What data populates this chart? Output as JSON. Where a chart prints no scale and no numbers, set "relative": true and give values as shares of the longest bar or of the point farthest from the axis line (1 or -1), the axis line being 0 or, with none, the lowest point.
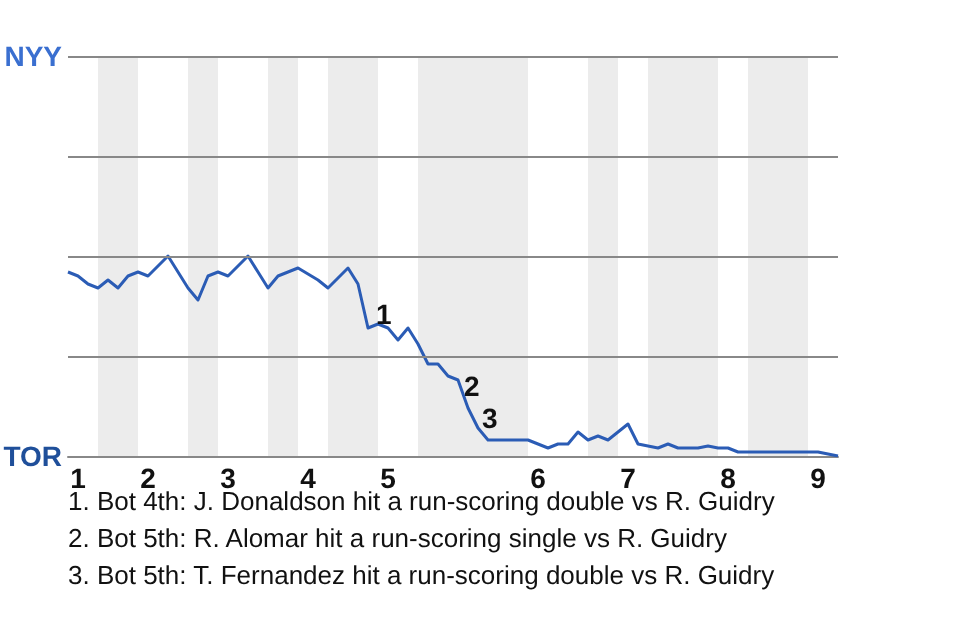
{
  "chart_data": {
    "type": "line",
    "relative": true,
    "categories": [
      null,
      "1",
      null,
      null,
      null,
      null,
      null,
      null,
      "2",
      null,
      null,
      null,
      null,
      null,
      null,
      null,
      "3",
      null,
      null,
      null,
      null,
      null,
      null,
      null,
      "4",
      null,
      null,
      null,
      null,
      null,
      null,
      null,
      "5",
      null,
      null,
      null,
      null,
      null,
      null,
      null,
      null,
      null,
      null,
      null,
      null,
      null,
      null,
      "6",
      null,
      null,
      null,
      null,
      null,
      null,
      null,
      null,
      "7",
      null,
      null,
      null,
      null,
      null,
      null,
      null,
      null,
      null,
      "8",
      null,
      null,
      null,
      null,
      null,
      null,
      null,
      null,
      "9",
      null,
      null
    ],
    "series": [
      {
        "color": "#2b5cb5",
        "values": [
          0.92,
          0.9,
          0.86,
          0.84,
          0.88,
          0.84,
          0.9,
          0.92,
          0.9,
          0.95,
          1,
          0.92,
          0.84,
          0.78,
          0.9,
          0.92,
          0.9,
          0.95,
          1,
          0.92,
          0.84,
          0.9,
          0.92,
          0.94,
          0.91,
          0.88,
          0.84,
          0.89,
          0.94,
          0.86,
          0.64,
          0.66,
          0.64,
          0.58,
          0.64,
          0.56,
          0.46,
          0.46,
          0.4,
          0.38,
          0.24,
          0.14,
          0.08,
          0.08,
          0.08,
          0.08,
          0.08,
          0.06,
          0.04,
          0.06,
          0.06,
          0.12,
          0.08,
          0.1,
          0.08,
          0.12,
          0.16,
          0.06,
          0.05,
          0.04,
          0.06,
          0.04,
          0.04,
          0.04,
          0.05,
          0.04,
          0.04,
          0.02,
          0.02,
          0.02,
          0.02,
          0.02,
          0.02,
          0.02,
          0.02,
          0.02,
          0.01,
          0
        ]
      }
    ],
    "marker": "none",
    "ref_lines": [
      {
        "axis": "y",
        "value": 0.5,
        "color": "#888888"
      },
      {
        "axis": "y",
        "value": 1,
        "color": "#888888"
      },
      {
        "axis": "y",
        "value": 1.5,
        "color": "#888888"
      },
      {
        "axis": "y",
        "value": 2,
        "color": "#888888"
      }
    ],
    "annotations": [
      "NYY",
      "TOR",
      "1",
      "2",
      "3",
      "1. Bot 4th: J. Donaldson hit a run-scoring double vs R. Guidry",
      "2. Bot 5th: R. Alomar hit a run-scoring single vs R. Guidry",
      "3. Bot 5th: T. Fernandez hit a run-scoring double vs R. Guidry"
    ]
  }
}
